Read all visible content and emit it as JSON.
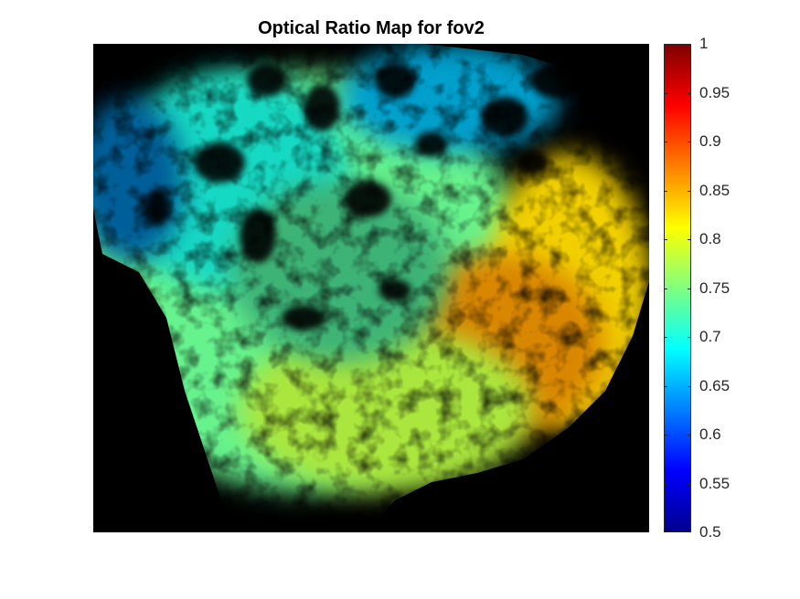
{
  "chart_data": {
    "type": "heatmap",
    "title": "Optical Ratio Map for fov2",
    "xlabel": "",
    "ylabel": "",
    "colormap": "jet",
    "clim": [
      0.5,
      1.0
    ],
    "colorbar": {
      "position": "right",
      "ticks": [
        0.5,
        0.55,
        0.6,
        0.65,
        0.7,
        0.75,
        0.8,
        0.85,
        0.9,
        0.95,
        1.0
      ],
      "tick_labels": [
        "0.5",
        "0.55",
        "0.6",
        "0.65",
        "0.7",
        "0.75",
        "0.8",
        "0.85",
        "0.9",
        "0.95",
        "1"
      ]
    },
    "background_color": "#000000",
    "grid": false,
    "axes_ticks_visible": false,
    "regions": [
      {
        "ratio": 0.74,
        "intensity": 0.95
      },
      {
        "ratio": 0.7,
        "intensity": 0.85
      },
      {
        "ratio": 0.66,
        "intensity": 0.8
      },
      {
        "ratio": 0.83,
        "intensity": 0.95
      },
      {
        "ratio": 0.86,
        "intensity": 0.85
      },
      {
        "ratio": 0.78,
        "intensity": 0.9
      },
      {
        "ratio": 0.73,
        "intensity": 0.7
      },
      {
        "ratio": 0.64,
        "intensity": 0.6
      }
    ]
  }
}
